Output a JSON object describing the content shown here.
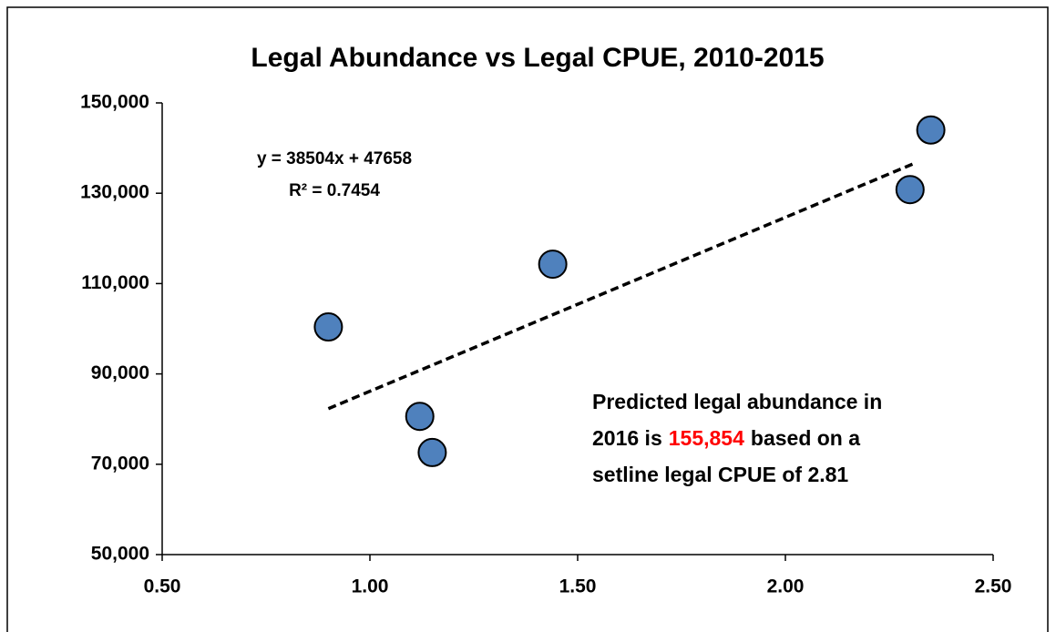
{
  "chart_data": {
    "type": "scatter",
    "title": "Legal Abundance vs Legal CPUE, 2010-2015",
    "x": [
      0.9,
      1.12,
      1.15,
      1.44,
      2.3,
      2.35
    ],
    "values": [
      100400,
      80600,
      72600,
      114300,
      130800,
      144000
    ],
    "color": "#4f81bd",
    "trendline": {
      "x": [
        0.9,
        2.31
      ],
      "values": [
        82312,
        136602
      ]
    },
    "equation": "y = 38504x + 47658",
    "r_squared": "R² = 0.7454",
    "annotation": {
      "line1": "Predicted legal abundance in",
      "line2_start": "2016 is",
      "highlight": "155,854",
      "highlight_color": "#ff0000",
      "line2_end": "based on a",
      "line3": "setline legal CPUE of 2.81"
    },
    "xlim": [
      0.5,
      2.5
    ],
    "xticks": [
      {
        "value": 0.5,
        "label": "0.50"
      },
      {
        "value": 1.0,
        "label": "1.00"
      },
      {
        "value": 1.5,
        "label": "1.50"
      },
      {
        "value": 2.0,
        "label": "2.00"
      },
      {
        "value": 2.5,
        "label": "2.50"
      }
    ],
    "ylim": [
      50000,
      150000
    ],
    "yticks": [
      {
        "value": 50000,
        "label": "50,000"
      },
      {
        "value": 70000,
        "label": "70,000"
      },
      {
        "value": 90000,
        "label": "90,000"
      },
      {
        "value": 110000,
        "label": "110,000"
      },
      {
        "value": 130000,
        "label": "130,000"
      },
      {
        "value": 150000,
        "label": "150,000"
      }
    ],
    "grid": false
  }
}
